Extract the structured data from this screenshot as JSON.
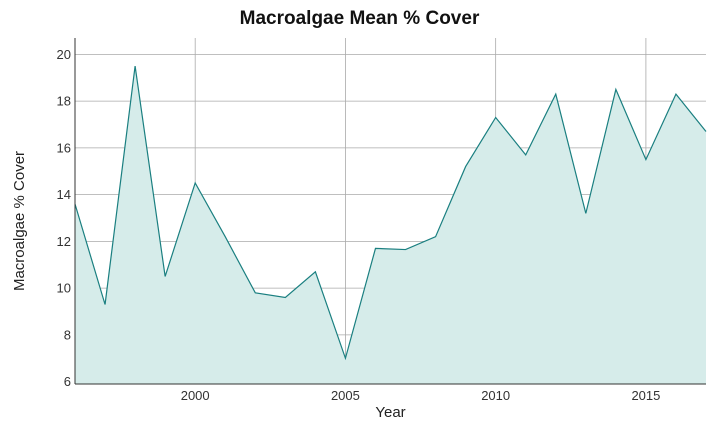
{
  "chart_data": {
    "type": "area",
    "title": "Macroalgae Mean % Cover",
    "xlabel": "Year",
    "ylabel": "Macroalgae % Cover",
    "xlim": [
      1996,
      2017
    ],
    "ylim": [
      5.9,
      20.7
    ],
    "x_ticks": [
      2000,
      2005,
      2010,
      2015
    ],
    "y_ticks": [
      6,
      8,
      10,
      12,
      14,
      16,
      18,
      20
    ],
    "grid": true,
    "legend": "none",
    "series": [
      {
        "x": [
          1996,
          1997,
          1998,
          1999,
          2000,
          2001,
          2002,
          2003,
          2004,
          2005,
          2006,
          2007,
          2008,
          2009,
          2010,
          2011,
          2012,
          2013,
          2014,
          2015,
          2016,
          2017
        ],
        "values": [
          13.6,
          9.3,
          19.5,
          10.5,
          14.5,
          12.2,
          9.8,
          9.6,
          10.7,
          7.0,
          11.7,
          11.65,
          12.2,
          15.2,
          17.3,
          15.7,
          18.3,
          13.2,
          18.5,
          15.5,
          18.3,
          16.7
        ]
      }
    ],
    "colors": {
      "line": "#1a7f80",
      "fill": "#d6ecea",
      "grid": "#aaaaaa"
    }
  }
}
